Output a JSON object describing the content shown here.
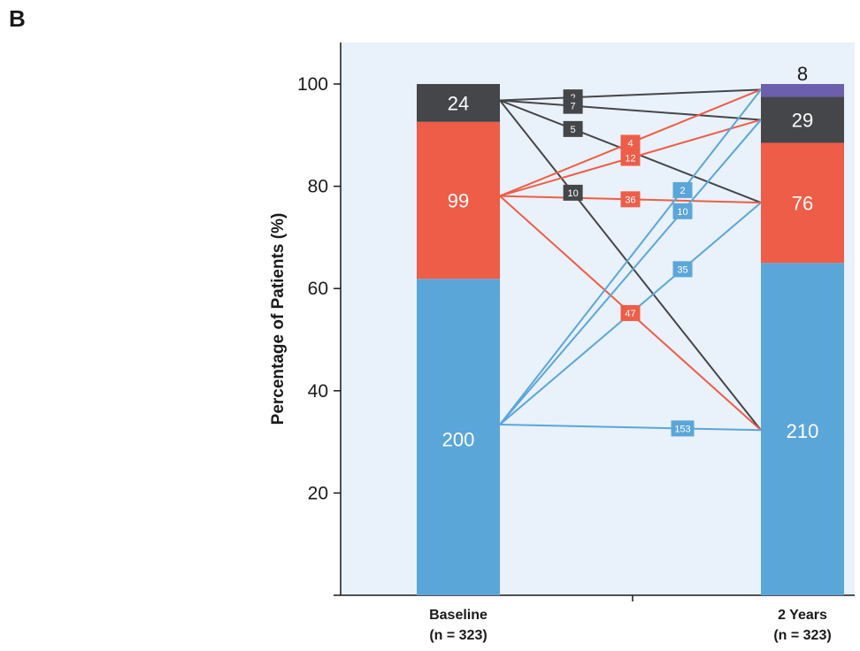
{
  "panel_label": "B",
  "chart_data": {
    "type": "bar",
    "subtype": "stacked-bar-with-transition-flows",
    "ylabel": "Percentage of Patients (%)",
    "ylim": [
      0,
      108
    ],
    "yticks": [
      20,
      40,
      60,
      80,
      100
    ],
    "categories": [
      {
        "key": "baseline",
        "line1": "Baseline",
        "line2": "(n = 323)"
      },
      {
        "key": "two_years",
        "line1": "2 Years",
        "line2": "(n = 323)"
      }
    ],
    "segments": [
      {
        "column": "baseline",
        "state": "blue",
        "count": 200,
        "bottom": 0,
        "top": 61.9,
        "color": "#5ba6d9",
        "label_color": "#ffffff"
      },
      {
        "column": "baseline",
        "state": "red",
        "count": 99,
        "bottom": 61.9,
        "top": 92.6,
        "color": "#ee5d47",
        "label_color": "#ffffff"
      },
      {
        "column": "baseline",
        "state": "dark",
        "count": 24,
        "bottom": 92.6,
        "top": 100,
        "color": "#454649",
        "label_color": "#ffffff"
      },
      {
        "column": "two_years",
        "state": "blue",
        "count": 210,
        "bottom": 0,
        "top": 65.0,
        "color": "#5ba6d9",
        "label_color": "#ffffff"
      },
      {
        "column": "two_years",
        "state": "red",
        "count": 76,
        "bottom": 65.0,
        "top": 88.5,
        "color": "#ee5d47",
        "label_color": "#ffffff"
      },
      {
        "column": "two_years",
        "state": "dark",
        "count": 29,
        "bottom": 88.5,
        "top": 97.5,
        "color": "#454649",
        "label_color": "#ffffff"
      },
      {
        "column": "two_years",
        "state": "purple",
        "count": 8,
        "bottom": 97.5,
        "top": 100,
        "color": "#6b5fae",
        "label_color": "#1a1a1a",
        "label_outside": true
      }
    ],
    "flows": [
      {
        "from": "dark",
        "to": "purple",
        "value": 2,
        "color": "#454649",
        "y0": 96.8,
        "y1": 98.9,
        "label_x": 0.28
      },
      {
        "from": "dark",
        "to": "dark",
        "value": 7,
        "color": "#454649",
        "y0": 96.8,
        "y1": 93.0,
        "label_x": 0.28
      },
      {
        "from": "dark",
        "to": "red",
        "value": 5,
        "color": "#454649",
        "y0": 96.8,
        "y1": 76.8,
        "label_x": 0.28
      },
      {
        "from": "dark",
        "to": "blue",
        "value": 10,
        "color": "#454649",
        "y0": 96.8,
        "y1": 32.3,
        "label_x": 0.28
      },
      {
        "from": "red",
        "to": "purple",
        "value": 4,
        "color": "#ee5d47",
        "y0": 78.1,
        "y1": 98.9,
        "label_x": 0.5
      },
      {
        "from": "red",
        "to": "dark",
        "value": 12,
        "color": "#ee5d47",
        "y0": 78.1,
        "y1": 93.0,
        "label_x": 0.5
      },
      {
        "from": "red",
        "to": "red",
        "value": 36,
        "color": "#ee5d47",
        "y0": 78.1,
        "y1": 76.8,
        "label_x": 0.5
      },
      {
        "from": "red",
        "to": "blue",
        "value": 47,
        "color": "#ee5d47",
        "y0": 78.1,
        "y1": 32.3,
        "label_x": 0.5
      },
      {
        "from": "blue",
        "to": "purple",
        "value": 2,
        "color": "#5ba6d9",
        "y0": 33.4,
        "y1": 98.9,
        "label_x": 0.7
      },
      {
        "from": "blue",
        "to": "dark",
        "value": 10,
        "color": "#5ba6d9",
        "y0": 33.4,
        "y1": 93.0,
        "label_x": 0.7
      },
      {
        "from": "blue",
        "to": "red",
        "value": 35,
        "color": "#5ba6d9",
        "y0": 33.4,
        "y1": 76.8,
        "label_x": 0.7
      },
      {
        "from": "blue",
        "to": "blue",
        "value": 153,
        "color": "#5ba6d9",
        "y0": 33.4,
        "y1": 32.3,
        "label_x": 0.7
      }
    ],
    "colors": {
      "background": "#e9f1fa",
      "axis": "#1a1a1a"
    }
  }
}
